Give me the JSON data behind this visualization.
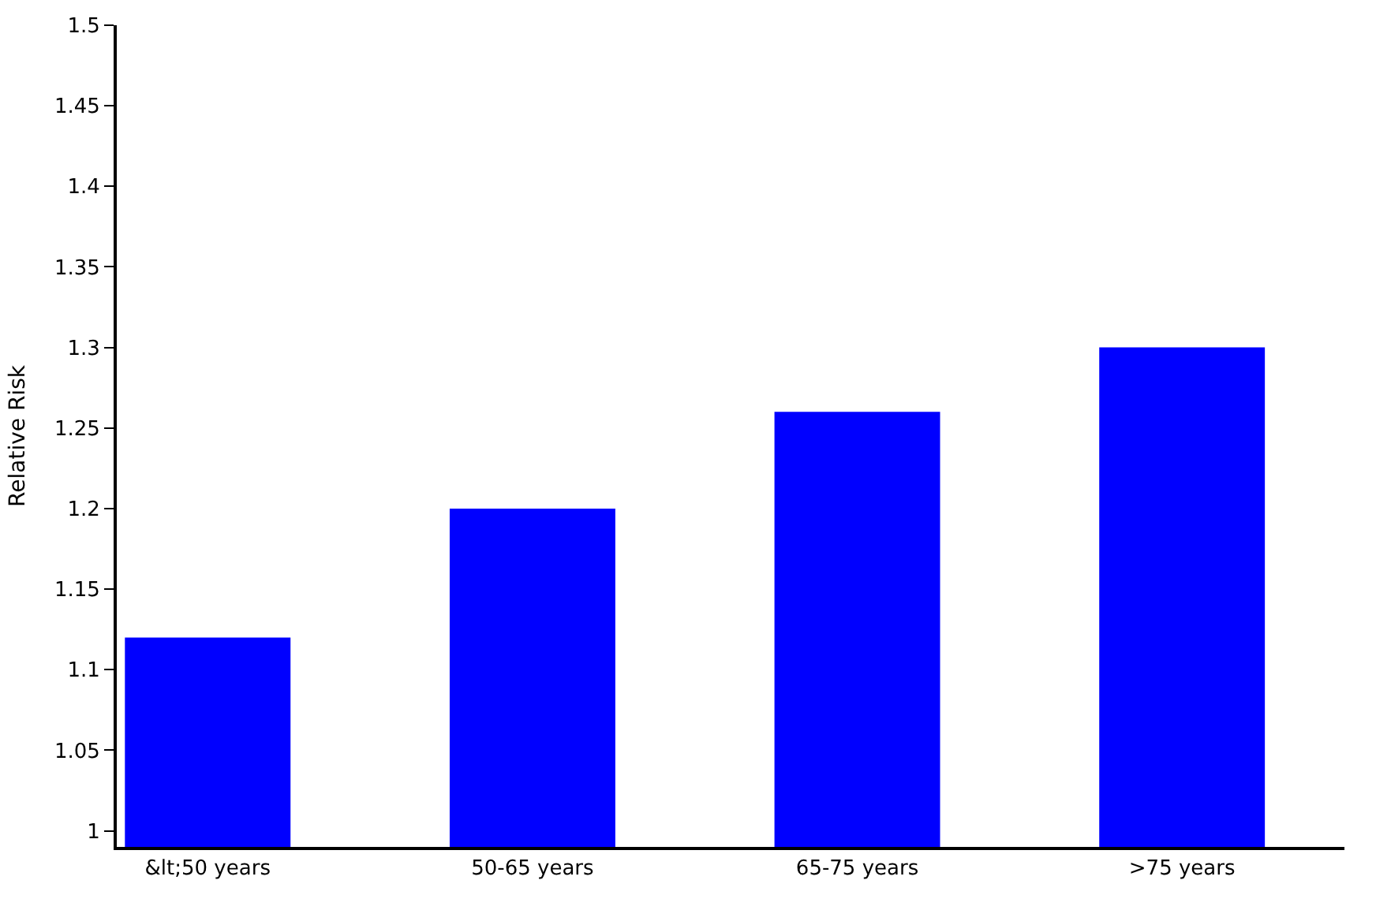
{
  "chart_data": {
    "type": "bar",
    "ylabel": "Relative Risk",
    "categories": [
      "&lt;50 years",
      "50-65 years",
      "65-75 years",
      ">75 years"
    ],
    "values": [
      1.12,
      1.2,
      1.26,
      1.3
    ],
    "color": "#0000ff",
    "ylim": [
      0.99,
      1.5
    ],
    "yticks": [
      1,
      1.05,
      1.1,
      1.15,
      1.2,
      1.25,
      1.3,
      1.35,
      1.4,
      1.45,
      1.5
    ]
  }
}
